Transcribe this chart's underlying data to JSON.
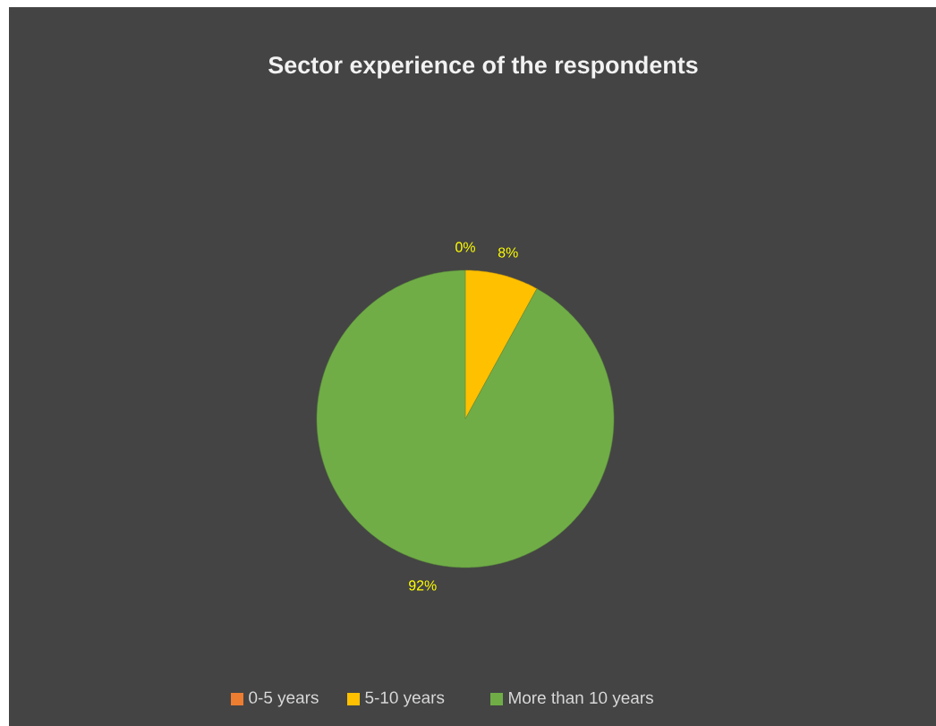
{
  "chart_data": {
    "type": "pie",
    "title": "Sector experience of the respondents",
    "categories": [
      "0-5 years",
      "5-10 years",
      "More than 10 years"
    ],
    "values": [
      0,
      8,
      92
    ],
    "value_labels": [
      "0%",
      "8%",
      "92%"
    ],
    "colors": [
      "#ed7d31",
      "#ffc000",
      "#70ad47"
    ],
    "legend": "bottom"
  }
}
